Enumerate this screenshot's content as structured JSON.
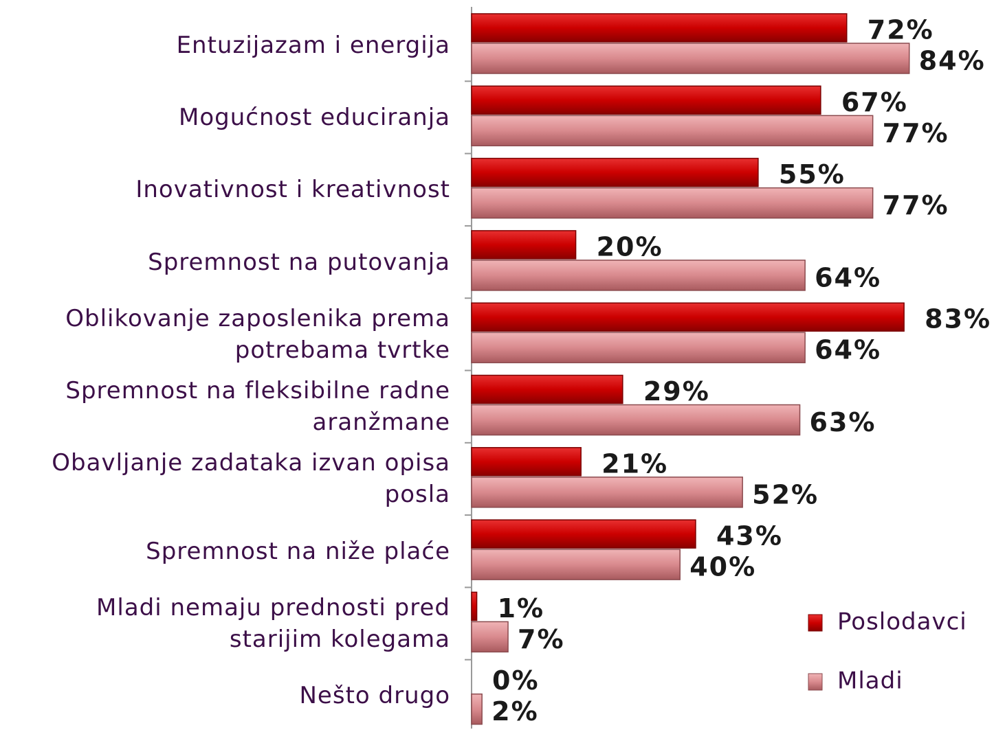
{
  "chart_data": {
    "type": "bar",
    "orientation": "horizontal",
    "categories": [
      "Entuzijazam i energija",
      "Mogućnost educiranja",
      "Inovativnost i kreativnost",
      "Spremnost na putovanja",
      "Oblikovanje zaposlenika prema potrebama tvrtke",
      "Spremnost na fleksibilne radne aranžmane",
      "Obavljanje zadataka izvan opisa posla",
      "Spremnost na niže plaće",
      "Mladi nemaju prednosti pred starijim kolegama",
      "Nešto drugo"
    ],
    "series": [
      {
        "name": "Poslodavci",
        "color": "#cc0000",
        "values": [
          72,
          67,
          55,
          20,
          83,
          29,
          21,
          43,
          1,
          0
        ],
        "value_labels": [
          "72%",
          "67%",
          "55%",
          "20%",
          "83%",
          "29%",
          "21%",
          "43%",
          "1%",
          "0%"
        ]
      },
      {
        "name": "Mladi",
        "color": "#d98a8e",
        "values": [
          84,
          77,
          77,
          64,
          64,
          63,
          52,
          40,
          7,
          2
        ],
        "value_labels": [
          "84%",
          "77%",
          "77%",
          "64%",
          "64%",
          "63%",
          "52%",
          "40%",
          "7%",
          "2%"
        ]
      }
    ],
    "legend": "right"
  }
}
